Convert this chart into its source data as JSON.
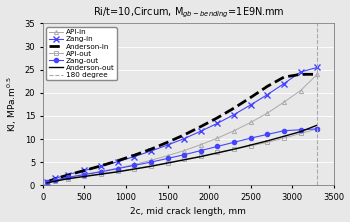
{
  "title": "Ri/t=10,Circum, M$_{gb-bending}$=1E9N.mm",
  "xlabel": "2c, mid crack length, mm",
  "ylabel": "KI, MPa.m$^{0.5}$",
  "xlim": [
    0,
    3500
  ],
  "ylim": [
    0,
    35
  ],
  "xticks": [
    0,
    500,
    1000,
    1500,
    2000,
    2500,
    3000,
    3500
  ],
  "yticks": [
    0,
    5,
    10,
    15,
    20,
    25,
    30,
    35
  ],
  "vline_x": 3300,
  "x_data": [
    50,
    150,
    300,
    500,
    700,
    900,
    1100,
    1300,
    1500,
    1700,
    1900,
    2100,
    2300,
    2500,
    2700,
    2900,
    3100,
    3300
  ],
  "API_in": [
    0.6,
    1.1,
    1.7,
    2.4,
    3.0,
    3.7,
    4.5,
    5.4,
    6.4,
    7.5,
    8.8,
    10.2,
    11.8,
    13.6,
    15.6,
    18.0,
    20.5,
    24.0
  ],
  "Zang_in": [
    0.8,
    1.5,
    2.3,
    3.2,
    4.1,
    5.1,
    6.2,
    7.4,
    8.7,
    10.1,
    11.7,
    13.4,
    15.3,
    17.4,
    19.6,
    22.0,
    24.5,
    25.5
  ],
  "Anderson_in": [
    0.7,
    1.4,
    2.2,
    3.2,
    4.2,
    5.3,
    6.5,
    7.8,
    9.3,
    10.9,
    12.7,
    14.6,
    16.7,
    19.0,
    21.4,
    23.4,
    24.0,
    24.0
  ],
  "API_out": [
    0.5,
    0.9,
    1.4,
    2.0,
    2.5,
    3.0,
    3.6,
    4.2,
    4.9,
    5.6,
    6.3,
    7.1,
    7.8,
    8.5,
    9.3,
    10.2,
    11.2,
    12.2
  ],
  "Zang_out": [
    0.6,
    1.1,
    1.7,
    2.3,
    2.9,
    3.6,
    4.3,
    5.0,
    5.8,
    6.6,
    7.5,
    8.4,
    9.3,
    10.2,
    11.0,
    11.8,
    12.0,
    12.2
  ],
  "Anderson_out": [
    0.5,
    0.9,
    1.4,
    1.9,
    2.4,
    2.9,
    3.5,
    4.1,
    4.8,
    5.5,
    6.2,
    7.0,
    7.8,
    8.7,
    9.6,
    10.6,
    11.6,
    13.0
  ],
  "bg_color": "#e8e8e8",
  "color_blue": "#4444ff",
  "color_black": "#000000",
  "color_gray": "#888888",
  "color_lgray": "#aaaaaa",
  "color_vline": "#aaaaaa"
}
